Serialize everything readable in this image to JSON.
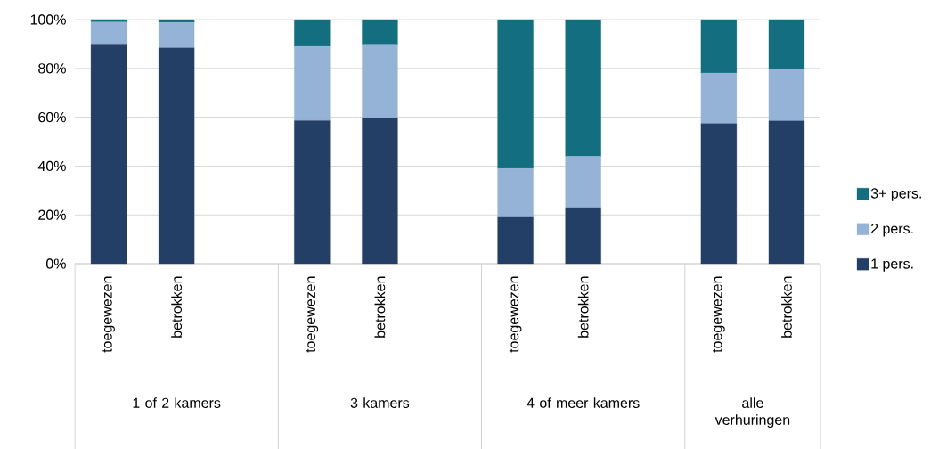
{
  "chart_data": {
    "type": "bar",
    "stacked": true,
    "categories": [
      "toegewezen",
      "betrokken",
      null,
      "toegewezen",
      "betrokken",
      null,
      "toegewezen",
      "betrokken",
      null,
      "toegewezen",
      "betrokken"
    ],
    "series": [
      {
        "name": "1 pers.",
        "color": "#243f66",
        "values": [
          90,
          88.4,
          null,
          58.6,
          59.7,
          null,
          19,
          23,
          null,
          57.4,
          58.5
        ]
      },
      {
        "name": "2 pers.",
        "color": "#95b3d7",
        "values": [
          9,
          10.4,
          null,
          30.4,
          30.2,
          null,
          20,
          21,
          null,
          20.7,
          21.3
        ]
      },
      {
        "name": "3+ pers.",
        "color": "#136e7f",
        "values": [
          1,
          1.2,
          null,
          11,
          10.1,
          null,
          61,
          56,
          null,
          21.9,
          20.2
        ]
      }
    ],
    "ylim": [
      0,
      100
    ],
    "yticks": [
      {
        "value": 0,
        "label": "0%"
      },
      {
        "value": 20,
        "label": "20%"
      },
      {
        "value": 40,
        "label": "40%"
      },
      {
        "value": 60,
        "label": "60%"
      },
      {
        "value": 80,
        "label": "80%"
      },
      {
        "value": 100,
        "label": "100%"
      }
    ],
    "grid": "y",
    "legend": "right",
    "annotations": [
      "1 of 2 kamers",
      "3 kamers",
      "4 of meer kamers",
      "alle verhuringen"
    ]
  }
}
